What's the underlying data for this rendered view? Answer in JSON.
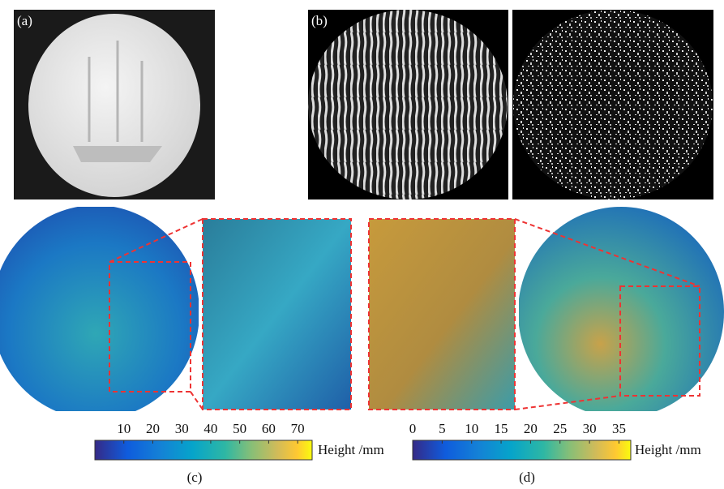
{
  "panels": [
    {
      "label": "(a)"
    },
    {
      "label": "(b)"
    },
    {
      "label": "(c)"
    },
    {
      "label": "(d)"
    }
  ],
  "colorbars": [
    {
      "label": "Height /mm",
      "lim": [
        0,
        75
      ],
      "ticks": [
        10,
        20,
        30,
        40,
        50,
        60,
        70
      ]
    },
    {
      "label": "Height /mm",
      "lim": [
        0,
        37
      ],
      "ticks": [
        0,
        5,
        10,
        15,
        20,
        25,
        30,
        35
      ]
    }
  ]
}
